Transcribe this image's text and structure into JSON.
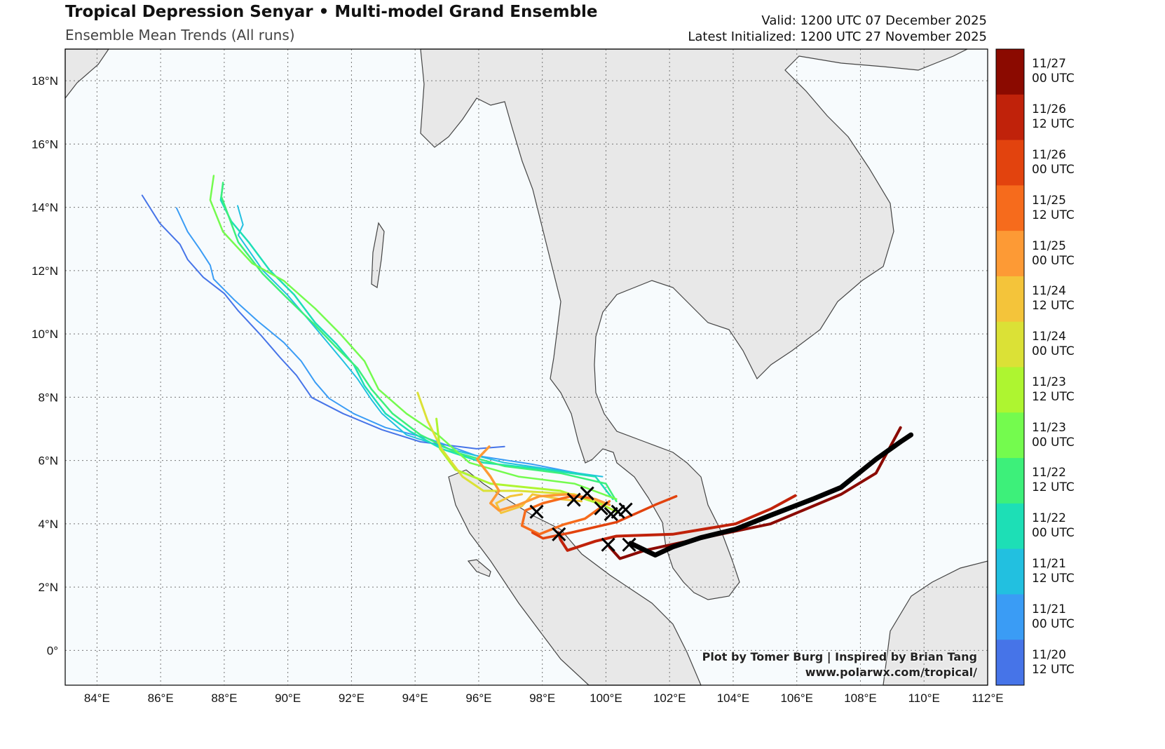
{
  "header": {
    "title": "Tropical Depression Senyar • Multi-model Grand Ensemble",
    "subtitle": "Ensemble Mean Trends (All runs)",
    "valid": "Valid: 1200 UTC 07 December 2025",
    "initialized": "Latest Initialized: 1200 UTC 27 November 2025"
  },
  "credits": {
    "line1": "Plot by Tomer Burg | Inspired by Brian Tang",
    "line2": "www.polarwx.com/tropical/"
  },
  "map": {
    "lon_range": [
      83,
      112
    ],
    "lat_range": [
      -1.1,
      19
    ],
    "lon_ticks": [
      84,
      86,
      88,
      90,
      92,
      94,
      96,
      98,
      100,
      102,
      104,
      106,
      108,
      110,
      112
    ],
    "lon_labels": [
      "84°E",
      "86°E",
      "88°E",
      "90°E",
      "92°E",
      "94°E",
      "96°E",
      "98°E",
      "100°E",
      "102°E",
      "104°E",
      "106°E",
      "108°E",
      "110°E",
      "112°E"
    ],
    "lat_ticks": [
      0,
      2,
      4,
      6,
      8,
      10,
      12,
      14,
      16,
      18
    ],
    "lat_labels": [
      "0°",
      "2°N",
      "4°N",
      "6°N",
      "8°N",
      "10°N",
      "12°N",
      "14°N",
      "16°N",
      "18°N"
    ],
    "land_color": "#e8e8e8",
    "ocean_color": "#f7fbfd"
  },
  "colorbar": [
    {
      "l1": "11/27",
      "l2": "00 UTC",
      "color": "#8b0a00"
    },
    {
      "l1": "11/26",
      "l2": "12 UTC",
      "color": "#c0220a"
    },
    {
      "l1": "11/26",
      "l2": "00 UTC",
      "color": "#e2430e"
    },
    {
      "l1": "11/25",
      "l2": "12 UTC",
      "color": "#f66b1c"
    },
    {
      "l1": "11/25",
      "l2": "00 UTC",
      "color": "#fd9a35"
    },
    {
      "l1": "11/24",
      "l2": "12 UTC",
      "color": "#f4c43a"
    },
    {
      "l1": "11/24",
      "l2": "00 UTC",
      "color": "#dbe136"
    },
    {
      "l1": "11/23",
      "l2": "12 UTC",
      "color": "#aef530"
    },
    {
      "l1": "11/23",
      "l2": "00 UTC",
      "color": "#74fb4e"
    },
    {
      "l1": "11/22",
      "l2": "12 UTC",
      "color": "#3df07a"
    },
    {
      "l1": "11/22",
      "l2": "00 UTC",
      "color": "#1ddfb6"
    },
    {
      "l1": "11/21",
      "l2": "12 UTC",
      "color": "#22c0e0"
    },
    {
      "l1": "11/21",
      "l2": "00 UTC",
      "color": "#3a9cf5"
    },
    {
      "l1": "11/20",
      "l2": "12 UTC",
      "color": "#4674e8"
    }
  ],
  "tracks": [
    {
      "init": "11/20 12 UTC",
      "color": "#4674e8",
      "width": 2,
      "pts": [
        [
          85.42,
          14.38
        ],
        [
          85.97,
          13.5
        ],
        [
          86.61,
          12.83
        ],
        [
          86.85,
          12.35
        ],
        [
          87.34,
          11.79
        ],
        [
          88,
          11.28
        ],
        [
          88.44,
          10.73
        ],
        [
          89.15,
          9.96
        ],
        [
          89.76,
          9.25
        ],
        [
          90.27,
          8.69
        ],
        [
          90.75,
          7.99
        ],
        [
          91.74,
          7.48
        ],
        [
          92.96,
          6.97
        ],
        [
          94.17,
          6.59
        ],
        [
          95.93,
          6.37
        ],
        [
          96.81,
          6.44
        ]
      ]
    },
    {
      "init": "11/21 00 UTC",
      "color": "#3a9cf5",
      "width": 2,
      "pts": [
        [
          86.5,
          13.98
        ],
        [
          86.85,
          13.23
        ],
        [
          87.23,
          12.68
        ],
        [
          87.56,
          12.17
        ],
        [
          87.67,
          11.73
        ],
        [
          88.33,
          11.06
        ],
        [
          89.06,
          10.4
        ],
        [
          89.87,
          9.73
        ],
        [
          90.42,
          9.14
        ],
        [
          90.86,
          8.47
        ],
        [
          91.3,
          7.96
        ],
        [
          92.07,
          7.48
        ],
        [
          93.07,
          7.04
        ],
        [
          94.39,
          6.7
        ],
        [
          95.93,
          6.15
        ],
        [
          97.69,
          5.88
        ],
        [
          99.12,
          5.6
        ]
      ]
    },
    {
      "init": "11/21 12 UTC",
      "color": "#22c0e0",
      "width": 2,
      "pts": [
        [
          88.42,
          14.05
        ],
        [
          88.59,
          13.45
        ],
        [
          88.44,
          13.12
        ],
        [
          89.21,
          12.01
        ],
        [
          89.98,
          11.24
        ],
        [
          90.64,
          10.46
        ],
        [
          91.19,
          9.8
        ],
        [
          91.74,
          9.14
        ],
        [
          92.19,
          8.58
        ],
        [
          92.63,
          7.92
        ],
        [
          92.96,
          7.48
        ],
        [
          93.73,
          6.81
        ],
        [
          95.05,
          6.37
        ],
        [
          96.81,
          5.93
        ],
        [
          98.35,
          5.71
        ],
        [
          99.89,
          5.49
        ]
      ]
    },
    {
      "init": "11/22 00 UTC",
      "color": "#1ddfb6",
      "width": 2.5,
      "pts": [
        [
          87.96,
          14.73
        ],
        [
          87.89,
          14.23
        ],
        [
          88.22,
          13.56
        ],
        [
          88.77,
          12.9
        ],
        [
          89.43,
          12.01
        ],
        [
          90.2,
          11.24
        ],
        [
          90.86,
          10.35
        ],
        [
          91.52,
          9.69
        ],
        [
          92.07,
          9.03
        ],
        [
          92.41,
          8.36
        ],
        [
          93.07,
          7.48
        ],
        [
          93.84,
          6.92
        ],
        [
          94.83,
          6.37
        ],
        [
          96.15,
          5.93
        ],
        [
          98.13,
          5.71
        ],
        [
          99.67,
          5.49
        ],
        [
          100.22,
          4.78
        ]
      ]
    },
    {
      "init": "11/22 12 UTC",
      "color": "#3df07a",
      "width": 2.5,
      "pts": [
        [
          87.96,
          14.78
        ],
        [
          87.91,
          14.34
        ],
        [
          88.44,
          12.9
        ],
        [
          89.21,
          11.9
        ],
        [
          89.98,
          11.13
        ],
        [
          90.82,
          10.31
        ],
        [
          91.52,
          9.58
        ],
        [
          92.19,
          8.92
        ],
        [
          92.63,
          8.25
        ],
        [
          93.29,
          7.48
        ],
        [
          94.17,
          6.81
        ],
        [
          95.27,
          6.26
        ],
        [
          96.81,
          5.82
        ],
        [
          98.57,
          5.6
        ],
        [
          100,
          5.27
        ],
        [
          100.33,
          4.71
        ]
      ]
    },
    {
      "init": "11/23 00 UTC",
      "color": "#74fb4e",
      "width": 2.5,
      "pts": [
        [
          87.67,
          15
        ],
        [
          87.56,
          14.23
        ],
        [
          87.96,
          13.23
        ],
        [
          88.88,
          12.23
        ],
        [
          89.87,
          11.68
        ],
        [
          90.86,
          10.8
        ],
        [
          91.63,
          10.02
        ],
        [
          92.41,
          9.14
        ],
        [
          92.85,
          8.25
        ],
        [
          93.73,
          7.48
        ],
        [
          94.72,
          6.81
        ],
        [
          95.71,
          5.93
        ],
        [
          97.25,
          5.49
        ],
        [
          99.01,
          5.27
        ],
        [
          100.33,
          4.78
        ]
      ]
    },
    {
      "init": "11/23 12 UTC",
      "color": "#aef530",
      "width": 3,
      "pts": [
        [
          94.67,
          7.32
        ],
        [
          94.78,
          6.37
        ],
        [
          95.27,
          5.71
        ],
        [
          96.37,
          5.27
        ],
        [
          98.57,
          5.04
        ],
        [
          99.89,
          4.6
        ],
        [
          100.33,
          4.38
        ]
      ]
    },
    {
      "init": "11/24 00 UTC",
      "color": "#dbe136",
      "width": 3,
      "pts": [
        [
          94.08,
          8.14
        ],
        [
          94.39,
          7.26
        ],
        [
          94.83,
          6.37
        ],
        [
          95.49,
          5.49
        ],
        [
          96.15,
          5.04
        ],
        [
          97.25,
          5.04
        ],
        [
          99.01,
          4.93
        ],
        [
          100.11,
          4.6
        ]
      ]
    },
    {
      "init": "11/24 12 UTC",
      "color": "#f4c43a",
      "width": 3,
      "pts": [
        [
          97.36,
          4.93
        ],
        [
          96.99,
          4.87
        ],
        [
          96.55,
          4.65
        ],
        [
          96.7,
          4.34
        ],
        [
          97.36,
          4.56
        ],
        [
          97.69,
          4.93
        ],
        [
          98.57,
          4.78
        ],
        [
          99.23,
          4.71
        ]
      ]
    },
    {
      "init": "11/25 00 UTC",
      "color": "#fd9a35",
      "width": 3.5,
      "pts": [
        [
          96.33,
          6.44
        ],
        [
          95.95,
          6.04
        ],
        [
          96.37,
          5.49
        ],
        [
          96.64,
          5.04
        ],
        [
          96.37,
          4.65
        ],
        [
          96.64,
          4.42
        ],
        [
          97.25,
          4.6
        ],
        [
          97.91,
          4.87
        ],
        [
          98.79,
          4.93
        ],
        [
          99.67,
          4.78
        ],
        [
          100.11,
          4.6
        ]
      ]
    },
    {
      "init": "11/25 12 UTC",
      "color": "#f66b1c",
      "width": 3.5,
      "pts": [
        [
          100.11,
          4.71
        ],
        [
          99.34,
          4.16
        ],
        [
          98.68,
          3.98
        ],
        [
          97.91,
          3.67
        ],
        [
          97.36,
          3.94
        ],
        [
          97.47,
          4.42
        ],
        [
          98.02,
          4.65
        ],
        [
          98.9,
          4.87
        ],
        [
          99.56,
          4.82
        ]
      ]
    },
    {
      "init": "11/26 00 UTC",
      "color": "#e2430e",
      "width": 3.5,
      "pts": [
        [
          102.21,
          4.87
        ],
        [
          101.55,
          4.6
        ],
        [
          100.33,
          4.05
        ],
        [
          98.9,
          3.72
        ],
        [
          98.02,
          3.54
        ],
        [
          97.69,
          3.72
        ]
      ]
    },
    {
      "init": "11/26 12 UTC",
      "color": "#c0220a",
      "width": 4,
      "pts": [
        [
          105.95,
          4.89
        ],
        [
          105.18,
          4.47
        ],
        [
          104.08,
          4
        ],
        [
          102.1,
          3.67
        ],
        [
          100.33,
          3.61
        ],
        [
          99.67,
          3.45
        ],
        [
          98.79,
          3.16
        ],
        [
          98.57,
          3.5
        ],
        [
          98.5,
          3.72
        ]
      ]
    },
    {
      "init": "11/27 00 UTC",
      "color": "#8b0a00",
      "width": 4,
      "pts": [
        [
          109.26,
          7.04
        ],
        [
          108.49,
          5.6
        ],
        [
          107.39,
          4.93
        ],
        [
          105.18,
          4
        ],
        [
          102.98,
          3.54
        ],
        [
          101.22,
          3.16
        ],
        [
          100.44,
          2.9
        ],
        [
          100.11,
          3.27
        ]
      ]
    }
  ],
  "mean_track": {
    "color": "#000000",
    "width": 7,
    "pts": [
      [
        109.59,
        6.81
      ],
      [
        109.26,
        6.59
      ],
      [
        108.49,
        6.04
      ],
      [
        107.39,
        5.15
      ],
      [
        106.5,
        4.78
      ],
      [
        105.18,
        4.27
      ],
      [
        104.08,
        3.83
      ],
      [
        102.98,
        3.56
      ],
      [
        102.1,
        3.27
      ],
      [
        101.55,
        3.01
      ],
      [
        100.78,
        3.38
      ]
    ]
  },
  "final_positions": [
    [
      97.82,
      4.38
    ],
    [
      98.52,
      3.67
    ],
    [
      98.99,
      4.76
    ],
    [
      99.41,
      4.96
    ],
    [
      99.85,
      4.49
    ],
    [
      100.16,
      4.31
    ],
    [
      100.38,
      4.38
    ],
    [
      100.62,
      4.45
    ],
    [
      100.07,
      3.34
    ],
    [
      100.73,
      3.34
    ]
  ]
}
